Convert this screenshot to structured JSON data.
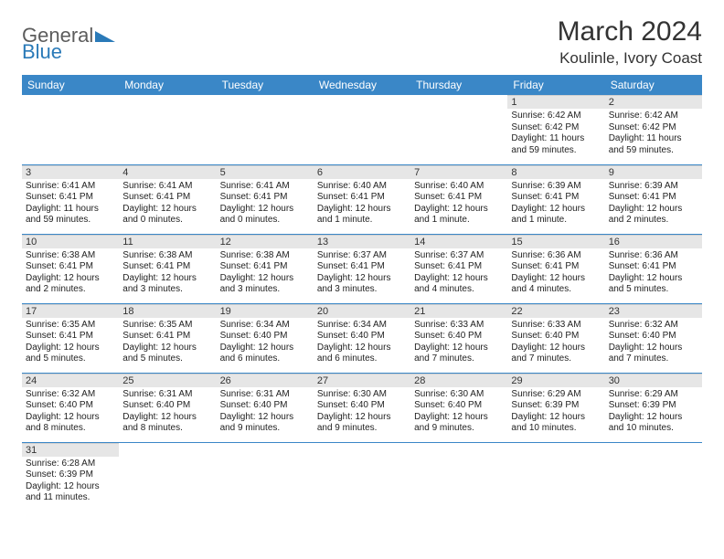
{
  "logo": {
    "text1": "General",
    "text2": "Blue"
  },
  "title": "March 2024",
  "location": "Koulinle, Ivory Coast",
  "header_bg": "#3a87c7",
  "daynum_bg": "#e6e6e6",
  "day_headers": [
    "Sunday",
    "Monday",
    "Tuesday",
    "Wednesday",
    "Thursday",
    "Friday",
    "Saturday"
  ],
  "weeks": [
    [
      {
        "n": "",
        "sr": "",
        "ss": "",
        "dl": ""
      },
      {
        "n": "",
        "sr": "",
        "ss": "",
        "dl": ""
      },
      {
        "n": "",
        "sr": "",
        "ss": "",
        "dl": ""
      },
      {
        "n": "",
        "sr": "",
        "ss": "",
        "dl": ""
      },
      {
        "n": "",
        "sr": "",
        "ss": "",
        "dl": ""
      },
      {
        "n": "1",
        "sr": "Sunrise: 6:42 AM",
        "ss": "Sunset: 6:42 PM",
        "dl": "Daylight: 11 hours and 59 minutes."
      },
      {
        "n": "2",
        "sr": "Sunrise: 6:42 AM",
        "ss": "Sunset: 6:42 PM",
        "dl": "Daylight: 11 hours and 59 minutes."
      }
    ],
    [
      {
        "n": "3",
        "sr": "Sunrise: 6:41 AM",
        "ss": "Sunset: 6:41 PM",
        "dl": "Daylight: 11 hours and 59 minutes."
      },
      {
        "n": "4",
        "sr": "Sunrise: 6:41 AM",
        "ss": "Sunset: 6:41 PM",
        "dl": "Daylight: 12 hours and 0 minutes."
      },
      {
        "n": "5",
        "sr": "Sunrise: 6:41 AM",
        "ss": "Sunset: 6:41 PM",
        "dl": "Daylight: 12 hours and 0 minutes."
      },
      {
        "n": "6",
        "sr": "Sunrise: 6:40 AM",
        "ss": "Sunset: 6:41 PM",
        "dl": "Daylight: 12 hours and 1 minute."
      },
      {
        "n": "7",
        "sr": "Sunrise: 6:40 AM",
        "ss": "Sunset: 6:41 PM",
        "dl": "Daylight: 12 hours and 1 minute."
      },
      {
        "n": "8",
        "sr": "Sunrise: 6:39 AM",
        "ss": "Sunset: 6:41 PM",
        "dl": "Daylight: 12 hours and 1 minute."
      },
      {
        "n": "9",
        "sr": "Sunrise: 6:39 AM",
        "ss": "Sunset: 6:41 PM",
        "dl": "Daylight: 12 hours and 2 minutes."
      }
    ],
    [
      {
        "n": "10",
        "sr": "Sunrise: 6:38 AM",
        "ss": "Sunset: 6:41 PM",
        "dl": "Daylight: 12 hours and 2 minutes."
      },
      {
        "n": "11",
        "sr": "Sunrise: 6:38 AM",
        "ss": "Sunset: 6:41 PM",
        "dl": "Daylight: 12 hours and 3 minutes."
      },
      {
        "n": "12",
        "sr": "Sunrise: 6:38 AM",
        "ss": "Sunset: 6:41 PM",
        "dl": "Daylight: 12 hours and 3 minutes."
      },
      {
        "n": "13",
        "sr": "Sunrise: 6:37 AM",
        "ss": "Sunset: 6:41 PM",
        "dl": "Daylight: 12 hours and 3 minutes."
      },
      {
        "n": "14",
        "sr": "Sunrise: 6:37 AM",
        "ss": "Sunset: 6:41 PM",
        "dl": "Daylight: 12 hours and 4 minutes."
      },
      {
        "n": "15",
        "sr": "Sunrise: 6:36 AM",
        "ss": "Sunset: 6:41 PM",
        "dl": "Daylight: 12 hours and 4 minutes."
      },
      {
        "n": "16",
        "sr": "Sunrise: 6:36 AM",
        "ss": "Sunset: 6:41 PM",
        "dl": "Daylight: 12 hours and 5 minutes."
      }
    ],
    [
      {
        "n": "17",
        "sr": "Sunrise: 6:35 AM",
        "ss": "Sunset: 6:41 PM",
        "dl": "Daylight: 12 hours and 5 minutes."
      },
      {
        "n": "18",
        "sr": "Sunrise: 6:35 AM",
        "ss": "Sunset: 6:41 PM",
        "dl": "Daylight: 12 hours and 5 minutes."
      },
      {
        "n": "19",
        "sr": "Sunrise: 6:34 AM",
        "ss": "Sunset: 6:40 PM",
        "dl": "Daylight: 12 hours and 6 minutes."
      },
      {
        "n": "20",
        "sr": "Sunrise: 6:34 AM",
        "ss": "Sunset: 6:40 PM",
        "dl": "Daylight: 12 hours and 6 minutes."
      },
      {
        "n": "21",
        "sr": "Sunrise: 6:33 AM",
        "ss": "Sunset: 6:40 PM",
        "dl": "Daylight: 12 hours and 7 minutes."
      },
      {
        "n": "22",
        "sr": "Sunrise: 6:33 AM",
        "ss": "Sunset: 6:40 PM",
        "dl": "Daylight: 12 hours and 7 minutes."
      },
      {
        "n": "23",
        "sr": "Sunrise: 6:32 AM",
        "ss": "Sunset: 6:40 PM",
        "dl": "Daylight: 12 hours and 7 minutes."
      }
    ],
    [
      {
        "n": "24",
        "sr": "Sunrise: 6:32 AM",
        "ss": "Sunset: 6:40 PM",
        "dl": "Daylight: 12 hours and 8 minutes."
      },
      {
        "n": "25",
        "sr": "Sunrise: 6:31 AM",
        "ss": "Sunset: 6:40 PM",
        "dl": "Daylight: 12 hours and 8 minutes."
      },
      {
        "n": "26",
        "sr": "Sunrise: 6:31 AM",
        "ss": "Sunset: 6:40 PM",
        "dl": "Daylight: 12 hours and 9 minutes."
      },
      {
        "n": "27",
        "sr": "Sunrise: 6:30 AM",
        "ss": "Sunset: 6:40 PM",
        "dl": "Daylight: 12 hours and 9 minutes."
      },
      {
        "n": "28",
        "sr": "Sunrise: 6:30 AM",
        "ss": "Sunset: 6:40 PM",
        "dl": "Daylight: 12 hours and 9 minutes."
      },
      {
        "n": "29",
        "sr": "Sunrise: 6:29 AM",
        "ss": "Sunset: 6:39 PM",
        "dl": "Daylight: 12 hours and 10 minutes."
      },
      {
        "n": "30",
        "sr": "Sunrise: 6:29 AM",
        "ss": "Sunset: 6:39 PM",
        "dl": "Daylight: 12 hours and 10 minutes."
      }
    ],
    [
      {
        "n": "31",
        "sr": "Sunrise: 6:28 AM",
        "ss": "Sunset: 6:39 PM",
        "dl": "Daylight: 12 hours and 11 minutes."
      },
      {
        "n": "",
        "sr": "",
        "ss": "",
        "dl": ""
      },
      {
        "n": "",
        "sr": "",
        "ss": "",
        "dl": ""
      },
      {
        "n": "",
        "sr": "",
        "ss": "",
        "dl": ""
      },
      {
        "n": "",
        "sr": "",
        "ss": "",
        "dl": ""
      },
      {
        "n": "",
        "sr": "",
        "ss": "",
        "dl": ""
      },
      {
        "n": "",
        "sr": "",
        "ss": "",
        "dl": ""
      }
    ]
  ]
}
